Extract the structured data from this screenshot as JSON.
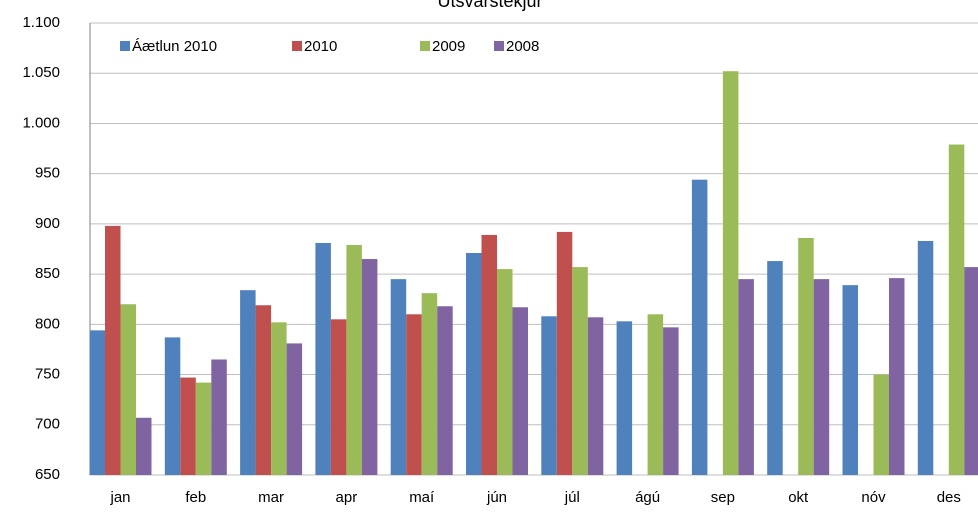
{
  "chart_data": {
    "type": "bar",
    "title": "Útsvarstekjur",
    "categories": [
      "jan",
      "feb",
      "mar",
      "apr",
      "maí",
      "jún",
      "júl",
      "ágú",
      "sep",
      "okt",
      "nóv",
      "des"
    ],
    "series": [
      {
        "name": "Áætlun 2010",
        "color": "#4f81bd",
        "values": [
          794,
          787,
          834,
          881,
          845,
          871,
          808,
          803,
          944,
          863,
          839,
          883
        ]
      },
      {
        "name": "2010",
        "color": "#c0504d",
        "values": [
          898,
          747,
          819,
          805,
          810,
          889,
          892,
          null,
          null,
          null,
          null,
          null
        ]
      },
      {
        "name": "2009",
        "color": "#9bbb59",
        "values": [
          820,
          742,
          802,
          879,
          831,
          855,
          857,
          810,
          1052,
          886,
          750,
          979
        ]
      },
      {
        "name": "2008",
        "color": "#8064a2",
        "values": [
          707,
          765,
          781,
          865,
          818,
          817,
          807,
          797,
          845,
          845,
          846,
          857
        ]
      }
    ],
    "ylim": [
      650,
      1100
    ],
    "yticks": [
      650,
      700,
      750,
      800,
      850,
      900,
      950,
      {
        "value": 1000,
        "label": "1.000"
      },
      {
        "value": 1050,
        "label": "1.050"
      },
      {
        "value": 1100,
        "label": "1.100"
      }
    ],
    "grid": true
  }
}
